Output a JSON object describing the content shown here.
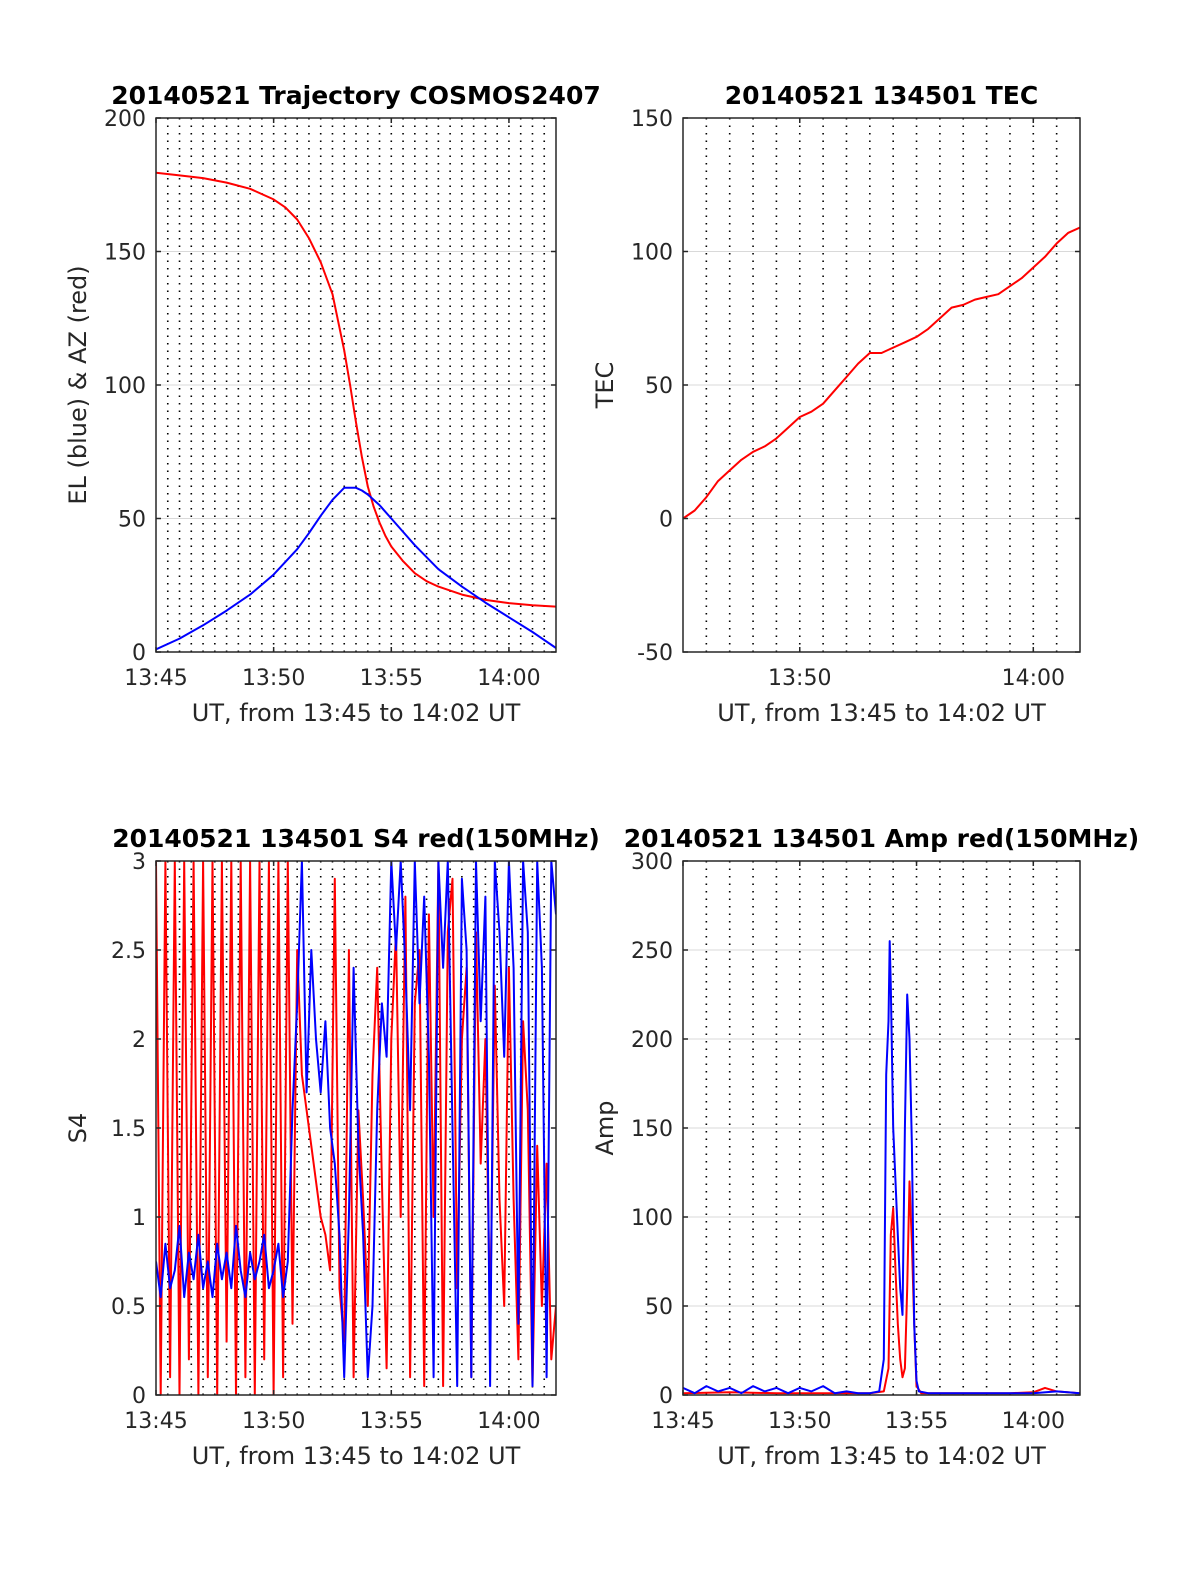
{
  "figure": {
    "colors": {
      "red": "#ff0000",
      "blue": "#0000ff",
      "grid_minor": "#000000",
      "grid_major": "#d9d9d9",
      "axis": "#262626"
    }
  },
  "chart_data": [
    {
      "id": "trajectory",
      "type": "line",
      "title": "20140521 Trajectory COSMOS2407",
      "xlabel": "UT, from 13:45 to 14:02 UT",
      "ylabel": "EL (blue) & AZ (red)",
      "xlim": [
        0,
        17
      ],
      "xticks": [
        0,
        5,
        10,
        15
      ],
      "xtick_labels": [
        "13:45",
        "13:50",
        "13:55",
        "14:00"
      ],
      "ylim": [
        0,
        200
      ],
      "yticks": [
        0,
        50,
        100,
        150,
        200
      ],
      "ytick_labels": [
        "0",
        "50",
        "100",
        "150",
        "200"
      ],
      "grid": true,
      "series": [
        {
          "color": "#ff0000",
          "x": [
            0,
            1,
            2,
            3,
            4,
            5,
            5.5,
            6,
            6.5,
            7,
            7.5,
            8,
            8.25,
            8.5,
            8.75,
            9,
            9.25,
            9.5,
            9.75,
            10,
            10.5,
            11,
            11.5,
            12,
            13,
            14,
            15,
            16,
            17
          ],
          "y": [
            179.5,
            178.5,
            177.5,
            175.8,
            173.5,
            169.5,
            166.5,
            162,
            155,
            146,
            134,
            113,
            100,
            86,
            73,
            62,
            54.5,
            48.5,
            43.5,
            39.5,
            34,
            29.5,
            26.5,
            24.5,
            21.5,
            19.5,
            18.3,
            17.5,
            17
          ]
        },
        {
          "color": "#0000ff",
          "x": [
            0,
            1,
            2,
            3,
            4,
            5,
            6,
            6.5,
            7,
            7.5,
            8,
            8.5,
            8.75,
            9,
            9.5,
            10,
            10.5,
            11,
            11.5,
            12,
            13,
            14,
            15,
            16,
            17
          ],
          "y": [
            1,
            5,
            10,
            15.5,
            21.5,
            29,
            38.5,
            44.5,
            51,
            57,
            61.5,
            61.5,
            60.5,
            59,
            55,
            50,
            45,
            40,
            35.5,
            31,
            24.5,
            18.5,
            13,
            7.5,
            1.5
          ]
        }
      ]
    },
    {
      "id": "tec",
      "type": "line",
      "title": "20140521 134501 TEC",
      "xlabel": "UT, from 13:45 to 14:02 UT",
      "ylabel": "TEC",
      "xlim": [
        0,
        17
      ],
      "xticks": [
        5,
        15
      ],
      "xtick_labels": [
        "13:50",
        "14:00"
      ],
      "ylim": [
        -50,
        150
      ],
      "yticks": [
        -50,
        0,
        50,
        100,
        150
      ],
      "ytick_labels": [
        "-50",
        "0",
        "50",
        "100",
        "150"
      ],
      "grid": true,
      "series": [
        {
          "color": "#ff0000",
          "x": [
            0,
            0.5,
            1,
            1.5,
            2,
            2.5,
            3,
            3.5,
            4,
            4.5,
            5,
            5.5,
            6,
            6.5,
            7,
            7.5,
            8,
            8.5,
            9,
            9.5,
            10,
            10.5,
            11,
            11.5,
            12,
            12.5,
            13,
            13.5,
            14,
            14.5,
            15,
            15.5,
            16,
            16.5,
            17
          ],
          "y": [
            0,
            3,
            8,
            14,
            18,
            22,
            25,
            27,
            30,
            34,
            38,
            40,
            43,
            48,
            53,
            58,
            62,
            62,
            64,
            66,
            68,
            71,
            75,
            79,
            80,
            82,
            83,
            84,
            87,
            90,
            94,
            98,
            103,
            107,
            109
          ]
        }
      ]
    },
    {
      "id": "s4",
      "type": "line",
      "title": "20140521 134501 S4 red(150MHz)",
      "xlabel": "UT, from 13:45 to 14:02 UT",
      "ylabel": "S4",
      "xlim": [
        0,
        17
      ],
      "xticks": [
        0,
        5,
        10,
        15
      ],
      "xtick_labels": [
        "13:45",
        "13:50",
        "13:55",
        "14:00"
      ],
      "ylim": [
        0,
        3
      ],
      "yticks": [
        0,
        0.5,
        1,
        1.5,
        2,
        2.5,
        3
      ],
      "ytick_labels": [
        "0",
        "0.5",
        "1",
        "1.5",
        "2",
        "2.5",
        "3"
      ],
      "grid": true,
      "series": [
        {
          "color": "#ff0000",
          "x": [
            0,
            0.2,
            0.4,
            0.6,
            0.8,
            1,
            1.2,
            1.4,
            1.6,
            1.8,
            2,
            2.2,
            2.4,
            2.6,
            2.8,
            3,
            3.2,
            3.4,
            3.6,
            3.8,
            4,
            4.2,
            4.4,
            4.6,
            4.8,
            5,
            5.2,
            5.4,
            5.6,
            5.8,
            6,
            6.2,
            6.4,
            6.6,
            6.8,
            7,
            7.2,
            7.4,
            7.6,
            7.8,
            8,
            8.2,
            8.4,
            8.6,
            8.8,
            9,
            9.2,
            9.4,
            9.6,
            9.8,
            10,
            10.2,
            10.4,
            10.6,
            10.8,
            11,
            11.2,
            11.4,
            11.6,
            11.8,
            12,
            12.2,
            12.4,
            12.6,
            12.8,
            13,
            13.2,
            13.4,
            13.6,
            13.8,
            14,
            14.2,
            14.4,
            14.6,
            14.8,
            15,
            15.2,
            15.4,
            15.6,
            15.8,
            16,
            16.2,
            16.4,
            16.6,
            16.8,
            17
          ],
          "y": [
            3,
            0,
            3,
            0.1,
            3,
            0,
            3,
            0.2,
            3,
            0,
            3,
            0.1,
            3,
            0,
            3,
            0.3,
            3,
            0,
            3,
            0.1,
            3,
            0,
            3,
            0.2,
            3,
            0,
            3,
            0.1,
            3,
            0.4,
            2.5,
            1.8,
            1.6,
            1.4,
            1.2,
            1.0,
            0.9,
            0.7,
            2.9,
            0.6,
            0.3,
            2.5,
            0.1,
            1.6,
            1.1,
            0.5,
            1.8,
            2.4,
            1.2,
            0.15,
            2.0,
            2.6,
            1.0,
            2.8,
            0.1,
            2.2,
            2.5,
            0.05,
            2.7,
            1.0,
            3,
            0.05,
            2.6,
            2.9,
            0.6,
            2.0,
            2.4,
            0.1,
            2.6,
            1.3,
            2.0,
            0.4,
            2.3,
            1.1,
            0.5,
            2.4,
            1.1,
            0.2,
            2.1,
            1.6,
            0.05,
            1.4,
            0.5,
            1.3,
            0.2,
            0.5
          ]
        },
        {
          "color": "#0000ff",
          "x": [
            0,
            0.2,
            0.4,
            0.6,
            0.8,
            1,
            1.2,
            1.4,
            1.6,
            1.8,
            2,
            2.2,
            2.4,
            2.6,
            2.8,
            3,
            3.2,
            3.4,
            3.6,
            3.8,
            4,
            4.2,
            4.4,
            4.6,
            4.8,
            5,
            5.2,
            5.4,
            5.6,
            5.8,
            6,
            6.2,
            6.4,
            6.6,
            6.8,
            7,
            7.2,
            7.4,
            7.6,
            7.8,
            8,
            8.2,
            8.4,
            8.6,
            8.8,
            9,
            9.2,
            9.4,
            9.6,
            9.8,
            10,
            10.2,
            10.4,
            10.6,
            10.8,
            11,
            11.2,
            11.4,
            11.6,
            11.8,
            12,
            12.2,
            12.4,
            12.6,
            12.8,
            13,
            13.2,
            13.4,
            13.6,
            13.8,
            14,
            14.2,
            14.4,
            14.6,
            14.8,
            15,
            15.2,
            15.4,
            15.6,
            15.8,
            16,
            16.2,
            16.4,
            16.6,
            16.8,
            17
          ],
          "y": [
            0.75,
            0.55,
            0.85,
            0.6,
            0.7,
            0.95,
            0.55,
            0.8,
            0.65,
            0.9,
            0.6,
            0.75,
            0.55,
            0.85,
            0.65,
            0.8,
            0.6,
            0.95,
            0.7,
            0.55,
            0.8,
            0.65,
            0.75,
            0.9,
            0.6,
            0.7,
            0.85,
            0.55,
            0.75,
            1.6,
            2.2,
            3,
            1.7,
            2.5,
            2.0,
            1.7,
            2.1,
            1.5,
            1.3,
            0.9,
            0.1,
            1.0,
            2.4,
            1.4,
            0.9,
            0.1,
            0.5,
            1.6,
            2.2,
            1.9,
            3,
            2.5,
            3,
            2.4,
            1.6,
            3,
            2.2,
            2.8,
            1.9,
            0.1,
            3,
            2.4,
            3,
            1.5,
            0.05,
            2.9,
            2.5,
            0.1,
            3,
            2.1,
            2.8,
            0.05,
            3,
            2.6,
            1.9,
            3,
            2.4,
            0.4,
            3,
            2.6,
            0.05,
            3,
            2.4,
            0.1,
            3,
            2.7
          ]
        }
      ]
    },
    {
      "id": "amp",
      "type": "line",
      "title": "20140521 134501 Amp red(150MHz)",
      "xlabel": "UT, from 13:45 to 14:02 UT",
      "ylabel": "Amp",
      "xlim": [
        0,
        17
      ],
      "xticks": [
        0,
        5,
        10,
        15
      ],
      "xtick_labels": [
        "13:45",
        "13:50",
        "13:55",
        "14:00"
      ],
      "ylim": [
        0,
        300
      ],
      "yticks": [
        0,
        50,
        100,
        150,
        200,
        250,
        300
      ],
      "ytick_labels": [
        "0",
        "50",
        "100",
        "150",
        "200",
        "250",
        "300"
      ],
      "grid": true,
      "series": [
        {
          "color": "#ff0000",
          "x": [
            0,
            2,
            4,
            6,
            8,
            8.6,
            8.8,
            8.9,
            9.0,
            9.1,
            9.2,
            9.3,
            9.4,
            9.5,
            9.6,
            9.7,
            9.8,
            9.9,
            10.0,
            10.2,
            10.5,
            12,
            14,
            15,
            15.5,
            16,
            17
          ],
          "y": [
            1,
            1.5,
            1,
            1,
            1,
            2,
            15,
            90,
            105,
            70,
            40,
            20,
            10,
            15,
            60,
            120,
            85,
            40,
            5,
            1,
            1,
            1,
            1,
            1.5,
            4,
            2,
            1
          ]
        },
        {
          "color": "#0000ff",
          "x": [
            0,
            0.5,
            1,
            1.5,
            2,
            2.5,
            3,
            3.5,
            4,
            4.5,
            5,
            5.5,
            6,
            6.5,
            7,
            7.5,
            8,
            8.4,
            8.6,
            8.7,
            8.8,
            8.85,
            8.9,
            9.0,
            9.1,
            9.2,
            9.3,
            9.4,
            9.5,
            9.6,
            9.7,
            9.8,
            9.9,
            10.0,
            10.1,
            10.5,
            11,
            12,
            13,
            14,
            15,
            16,
            17
          ],
          "y": [
            4,
            1,
            5,
            2,
            4,
            1,
            5,
            2,
            4,
            1,
            4,
            2,
            5,
            1,
            2,
            1,
            1,
            2,
            20,
            180,
            210,
            255,
            230,
            150,
            120,
            90,
            60,
            45,
            150,
            225,
            200,
            140,
            40,
            8,
            2,
            1,
            1,
            1,
            1,
            1,
            1,
            2,
            1
          ]
        }
      ]
    }
  ]
}
